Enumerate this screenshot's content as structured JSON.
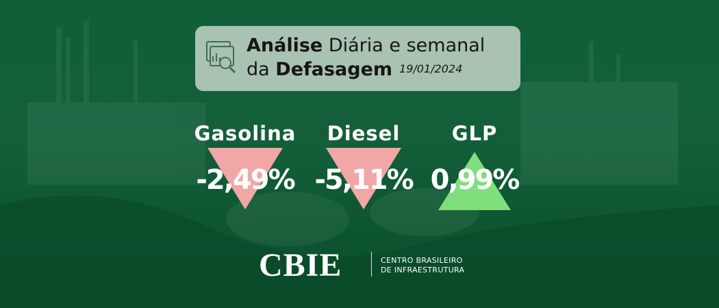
{
  "header": {
    "title_bold": "Análise",
    "title_rest": "Diária e semanal",
    "subtitle_prefix": "da",
    "subtitle_bold": "Defasagem",
    "date": "19/01/2024"
  },
  "items": [
    {
      "name": "Gasolina",
      "value": "-2,49%",
      "arrow": "down",
      "color": "#f2a7a7"
    },
    {
      "name": "Diesel",
      "value": "-5,11%",
      "arrow": "down",
      "color": "#f2a7a7"
    },
    {
      "name": "GLP",
      "value": "0,99%",
      "arrow": "up",
      "color": "#7fdf7d"
    }
  ],
  "logo": {
    "mark": "CBIE",
    "line1": "CENTRO BRASILEIRO",
    "line2": "DE INFRAESTRUTURA"
  }
}
